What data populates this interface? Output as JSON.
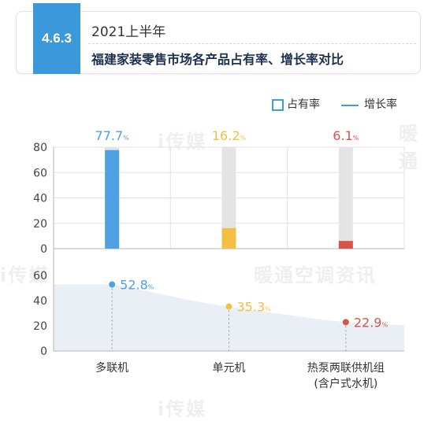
{
  "header": {
    "section_number": "4.6.3",
    "period": "2021上半年",
    "title": "福建家装零售市场各产品占有率、增长率对比",
    "badge_color": "#3a98db"
  },
  "legend": {
    "share_label": "占有率",
    "growth_label": "增长率"
  },
  "watermarks": [
    "i传媒",
    "暖通空调资讯",
    "暖通"
  ],
  "chart_data": {
    "type": "bar",
    "categories": [
      "多联机",
      "单元机",
      "热泵两联供机组\n(含户式水机)"
    ],
    "category_lines": [
      [
        "多联机"
      ],
      [
        "单元机"
      ],
      [
        "热泵两联供机组",
        "(含户式水机)"
      ]
    ],
    "share": {
      "values": [
        77.7,
        16.2,
        6.1
      ],
      "unit": "%",
      "ylim": [
        0,
        80
      ],
      "yticks": [
        0,
        20,
        40,
        60,
        80
      ]
    },
    "growth": {
      "values": [
        52.8,
        35.3,
        22.9
      ],
      "unit": "%",
      "ylim": [
        0,
        60
      ],
      "yticks": [
        0,
        20,
        40,
        60
      ]
    },
    "colors": [
      "#4ea1e2",
      "#f2c042",
      "#d9534a"
    ],
    "track_color": "#e4e4e4",
    "grid": true
  }
}
